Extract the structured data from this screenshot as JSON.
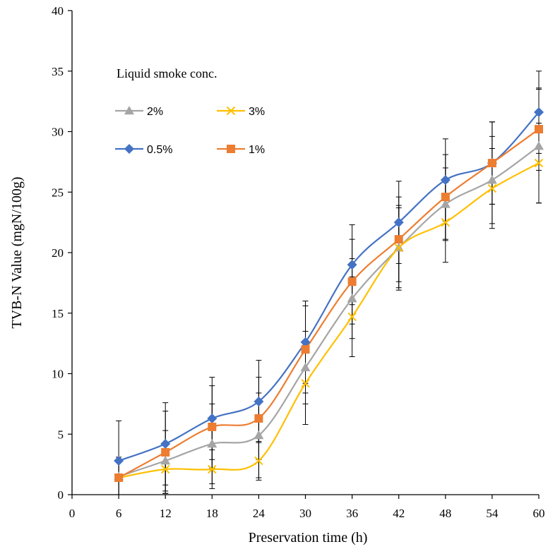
{
  "chart_data": {
    "type": "line",
    "xlabel": "Preservation time (h)",
    "ylabel": "TVB-N Value (mgN/100g)",
    "x_ticks": [
      0,
      6,
      12,
      18,
      24,
      30,
      36,
      42,
      48,
      54,
      60
    ],
    "y_ticks": [
      0,
      5,
      10,
      15,
      20,
      25,
      30,
      35,
      40
    ],
    "xlim": [
      0,
      60
    ],
    "ylim": [
      0,
      40
    ],
    "grid": false,
    "legend": {
      "title": "Liquid smoke  conc.",
      "placement": "top-left"
    },
    "x": [
      6,
      12,
      18,
      24,
      30,
      36,
      42,
      48,
      54,
      60
    ],
    "series": [
      {
        "name": "2%",
        "color": "#A5A5A5",
        "marker": "triangle",
        "values": [
          1.5,
          2.8,
          4.2,
          4.9,
          10.5,
          16.2,
          20.4,
          24.0,
          26.0,
          28.8
        ],
        "errors": [
          1.6,
          2.5,
          3.3,
          3.5,
          3.0,
          3.3,
          3.5,
          3.0,
          3.6,
          4.7
        ]
      },
      {
        "name": "3%",
        "color": "#FFC000",
        "marker": "x",
        "values": [
          1.4,
          2.1,
          2.1,
          2.8,
          9.2,
          14.7,
          20.4,
          22.5,
          25.3,
          27.4
        ],
        "errors": [
          1.4,
          2.0,
          1.6,
          1.6,
          3.4,
          3.3,
          3.3,
          3.3,
          3.3,
          3.3
        ]
      },
      {
        "name": "0.5%",
        "color": "#4472C4",
        "marker": "diamond",
        "values": [
          2.8,
          4.2,
          6.3,
          7.7,
          12.6,
          19.0,
          22.5,
          26.0,
          27.4,
          31.6
        ],
        "errors": [
          3.3,
          3.4,
          3.4,
          3.4,
          3.4,
          3.3,
          3.4,
          3.4,
          3.4,
          3.4
        ]
      },
      {
        "name": "1%",
        "color": "#ED7D31",
        "marker": "square",
        "values": [
          1.4,
          3.5,
          5.6,
          6.3,
          12.0,
          17.6,
          21.1,
          24.6,
          27.4,
          30.2
        ],
        "errors": [
          1.4,
          3.4,
          3.4,
          3.4,
          3.6,
          3.5,
          3.5,
          3.5,
          3.4,
          3.4
        ]
      }
    ]
  }
}
